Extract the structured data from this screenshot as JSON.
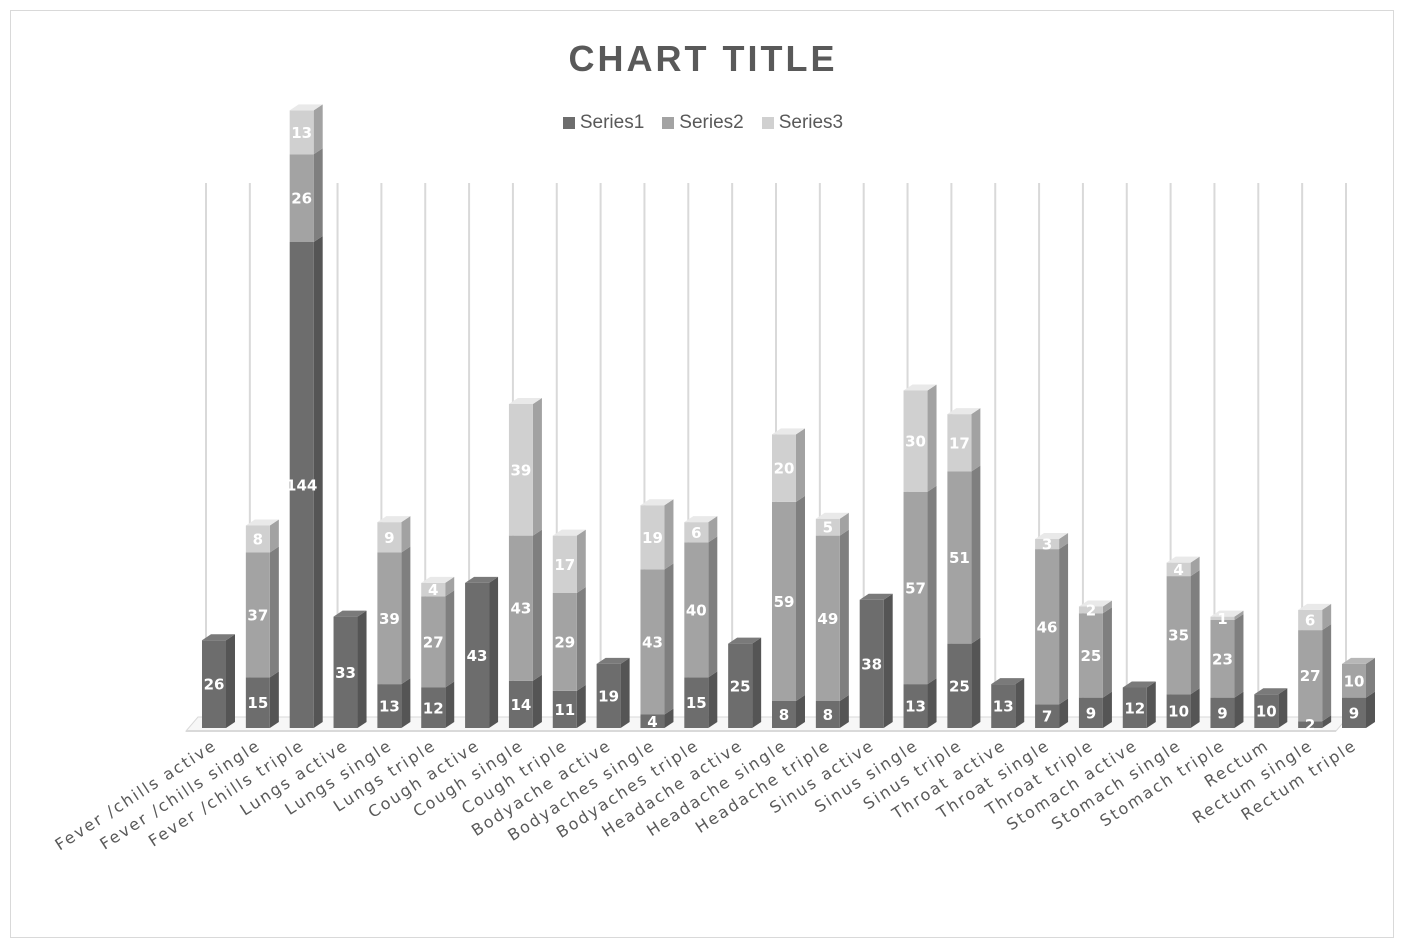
{
  "chart_data": {
    "type": "bar",
    "stacked": true,
    "title": "CHART TITLE",
    "legend_position": "top",
    "grid": true,
    "categories": [
      "Fever /chills active",
      "Fever /chills single",
      "Fever /chills triple",
      "Lungs active",
      "Lungs single",
      "Lungs triple",
      "Cough active",
      "Cough single",
      "Cough triple",
      "Bodyache active",
      "Bodyaches single",
      "Bodyaches triple",
      "Headache active",
      "Headache single",
      "Headache triple",
      "Sinus active",
      "Sinus single",
      "Sinus triple",
      "Throat active",
      "Throat single",
      "Throat triple",
      "Stomach active",
      "Stomach single",
      "Stomach triple",
      "Rectum",
      "Rectum single",
      "Rectum triple"
    ],
    "series": [
      {
        "name": "Series1",
        "color": "#6d6d6d",
        "values": [
          26,
          15,
          144,
          33,
          13,
          12,
          43,
          14,
          11,
          19,
          4,
          15,
          25,
          8,
          8,
          38,
          13,
          25,
          13,
          7,
          9,
          12,
          10,
          9,
          10,
          2,
          9
        ]
      },
      {
        "name": "Series2",
        "color": "#a3a3a3",
        "values": [
          null,
          37,
          26,
          null,
          39,
          27,
          null,
          43,
          29,
          null,
          43,
          40,
          null,
          59,
          49,
          null,
          57,
          51,
          null,
          46,
          25,
          null,
          35,
          23,
          null,
          27,
          10
        ]
      },
      {
        "name": "Series3",
        "color": "#d0d0d0",
        "values": [
          null,
          8,
          13,
          null,
          9,
          4,
          null,
          39,
          17,
          null,
          19,
          6,
          null,
          20,
          5,
          null,
          30,
          17,
          null,
          3,
          2,
          null,
          4,
          1,
          null,
          6,
          null
        ]
      }
    ]
  }
}
